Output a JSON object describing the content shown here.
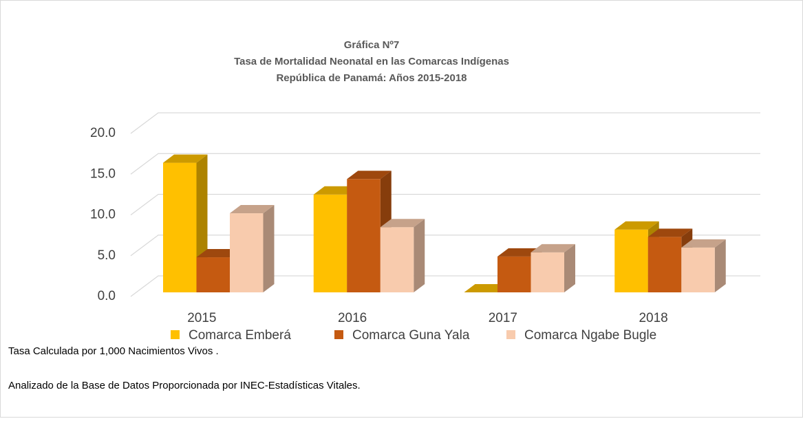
{
  "chart_data": {
    "type": "bar3d",
    "title": [
      "Gráfica Nº7",
      "Tasa de Mortalidad Neonatal en las Comarcas Indígenas",
      "República de Panamá: Años 2015-2018"
    ],
    "categories": [
      "2015",
      "2016",
      "2017",
      "2018"
    ],
    "series": [
      {
        "name": "Comarca Emberá",
        "color": "#FFC000",
        "values": [
          15.9,
          12.0,
          0,
          7.7
        ]
      },
      {
        "name": "Comarca Guna Yala",
        "color": "#C55A11",
        "values": [
          4.3,
          13.9,
          4.4,
          6.8
        ]
      },
      {
        "name": "Comarca Ngabe Bugle",
        "color": "#F8CBAD",
        "values": [
          9.7,
          8.0,
          4.9,
          5.5
        ]
      }
    ],
    "ylim": [
      0,
      20
    ],
    "yticks": [
      {
        "value": 0,
        "label": "0.0"
      },
      {
        "value": 5,
        "label": "5.0"
      },
      {
        "value": 10,
        "label": "10.0"
      },
      {
        "value": 15,
        "label": "15.0"
      },
      {
        "value": 20,
        "label": "20.0"
      }
    ],
    "grid": true,
    "notes": [
      "Tasa Calculada por 1,000 Nacimientos Vivos  .",
      "Analizado de la Base de Datos Proporcionada por INEC-Estadísticas Vitales."
    ]
  }
}
